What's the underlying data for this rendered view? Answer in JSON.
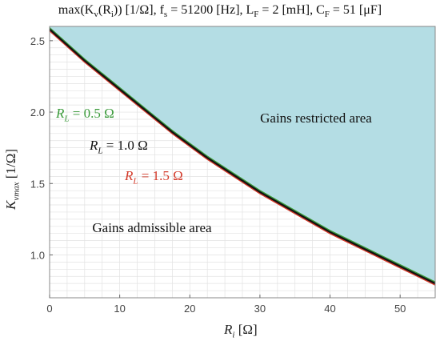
{
  "chart_data": {
    "type": "line",
    "title": "max(K_v(R_i)) [1/Ω], f_s = 51200 [Hz], L_F = 2 [mH], C_F = 51 [μF]",
    "xlabel": "R_i [Ω]",
    "ylabel": "K_vmax [1/Ω]",
    "xlim": [
      0,
      55
    ],
    "ylim": [
      0.7,
      2.6
    ],
    "x_ticks": [
      "0",
      "10",
      "20",
      "30",
      "40",
      "50"
    ],
    "y_ticks": [
      "1.0",
      "1.5",
      "2.0",
      "2.5"
    ],
    "grid": true,
    "x": [
      0,
      2.5,
      5,
      7.5,
      10,
      12.5,
      15,
      17.5,
      20,
      22.5,
      25,
      27.5,
      30,
      32.5,
      35,
      37.5,
      40,
      42.5,
      45,
      47.5,
      50,
      52.5,
      55
    ],
    "series": [
      {
        "name": "R_L = 0.5 Ω",
        "color": "#3a9a3a",
        "values": [
          2.59,
          2.48,
          2.37,
          2.27,
          2.17,
          2.07,
          1.97,
          1.87,
          1.78,
          1.69,
          1.61,
          1.53,
          1.45,
          1.38,
          1.31,
          1.24,
          1.17,
          1.11,
          1.05,
          0.99,
          0.93,
          0.87,
          0.81
        ]
      },
      {
        "name": "R_L = 1.0 Ω",
        "color": "#111111",
        "values": [
          2.58,
          2.47,
          2.36,
          2.26,
          2.16,
          2.06,
          1.96,
          1.86,
          1.77,
          1.68,
          1.6,
          1.52,
          1.44,
          1.37,
          1.3,
          1.23,
          1.16,
          1.1,
          1.04,
          0.98,
          0.92,
          0.86,
          0.8
        ]
      },
      {
        "name": "R_L = 1.5 Ω",
        "color": "#d33a2a",
        "values": [
          2.57,
          2.46,
          2.35,
          2.25,
          2.15,
          2.05,
          1.95,
          1.85,
          1.76,
          1.67,
          1.59,
          1.51,
          1.43,
          1.36,
          1.29,
          1.22,
          1.15,
          1.09,
          1.03,
          0.97,
          0.91,
          0.85,
          0.79
        ]
      }
    ],
    "restricted_fill_color": "#b4dde4",
    "annotations": {
      "restricted": "Gains restricted area",
      "admissible": "Gains admissible area"
    }
  },
  "labels": {
    "title": {
      "prefix": "max(K",
      "v": "v",
      "paren": "(R",
      "i": "i",
      "rest": ")) [1/Ω], f",
      "s": "s",
      "fs": " = 51200 [Hz], L",
      "F1": "F",
      "lf": " = 2 [mH], C",
      "F2": "F",
      "cf": " = 51 [μF]"
    },
    "ylabel": {
      "k": "K",
      "sub": "vmax",
      "unit": " [1/Ω]"
    },
    "xlabel": {
      "r": "R",
      "sub": "i",
      "unit": " [Ω]"
    },
    "rl05": {
      "r": "R",
      "sub": "L",
      "val": " = 0.5 Ω"
    },
    "rl10": {
      "r": "R",
      "sub": "L",
      "val": " = 1.0 Ω"
    },
    "rl15": {
      "r": "R",
      "sub": "L",
      "val": " = 1.5 Ω"
    }
  }
}
